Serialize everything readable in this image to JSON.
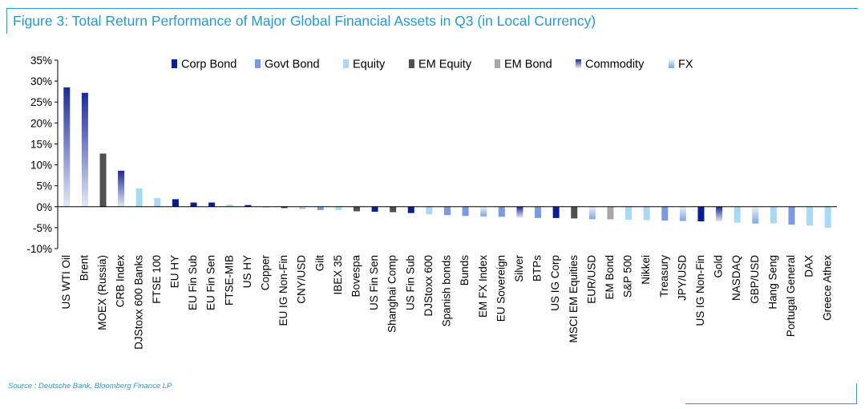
{
  "title": "Figure 3: Total Return Performance of Major Global Financial Assets in Q3 (in Local Currency)",
  "source": "Source : Deutsche Bank, Bloomberg Finance LP",
  "colors": {
    "Corp Bond": "#0a1f8f",
    "Govt Bond": "#7a9be4",
    "Equity": "#a9daf5",
    "EM Equity": "#505050",
    "EM Bond": "#a6a6a6",
    "Commodity_top": "#1a2a9c",
    "Commodity_bottom": "#e4e8f6",
    "FX_top": "#e6f1fb",
    "FX_bottom": "#7ea6e6"
  },
  "chart_data": {
    "type": "bar",
    "ylim": [
      -10,
      35
    ],
    "yticks": [
      "35%",
      "30%",
      "25%",
      "20%",
      "15%",
      "10%",
      "5%",
      "0%",
      "-5%",
      "-10%"
    ],
    "ytick_values": [
      35,
      30,
      25,
      20,
      15,
      10,
      5,
      0,
      -5,
      -10
    ],
    "legend": [
      "Corp Bond",
      "Govt Bond",
      "Equity",
      "EM Equity",
      "EM Bond",
      "Commodity",
      "FX"
    ],
    "legend_placement": "top",
    "categories": [
      "US WTI Oil",
      "Brent",
      "MOEX (Russia)",
      "CRB Index",
      "DJStoxx 600 Banks",
      "FTSE 100",
      "EU HY",
      "EU Fin Sub",
      "EU Fin Sen",
      "FTSE-MIB",
      "US HY",
      "Copper",
      "EU IG Non-Fin",
      "CNY/USD",
      "Gilt",
      "IBEX 35",
      "Bovespa",
      "US Fin Sen",
      "Shanghai Comp",
      "US Fin Sub",
      "DJStoxx 600",
      "Spanish bonds",
      "Bunds",
      "EM FX Index",
      "EU Sovereign",
      "Silver",
      "BTPs",
      "US IG Corp",
      "MSCI EM Equities",
      "EUR/USD",
      "EM Bond",
      "S&P 500",
      "Nikkei",
      "Treasury",
      "JPY/USD",
      "US IG Non-Fin",
      "Gold",
      "NASDAQ",
      "GBP/USD",
      "Hang Seng",
      "Portugal General",
      "DAX",
      "Greece Athex"
    ],
    "values": [
      28.5,
      27.2,
      12.7,
      8.6,
      4.4,
      2.1,
      1.8,
      1.0,
      1.0,
      0.5,
      0.4,
      -0.1,
      -0.3,
      -0.5,
      -0.8,
      -0.8,
      -1.1,
      -1.2,
      -1.3,
      -1.5,
      -1.8,
      -2.0,
      -2.2,
      -2.3,
      -2.4,
      -2.6,
      -2.7,
      -2.7,
      -2.8,
      -3.0,
      -3.0,
      -3.1,
      -3.2,
      -3.3,
      -3.4,
      -3.5,
      -3.5,
      -3.8,
      -4.0,
      -4.0,
      -4.3,
      -4.5,
      -5.0
    ],
    "groups": [
      "Commodity",
      "Commodity",
      "EM Equity",
      "Commodity",
      "Equity",
      "Equity",
      "Corp Bond",
      "Corp Bond",
      "Corp Bond",
      "Equity",
      "Corp Bond",
      "Commodity",
      "Corp Bond",
      "FX",
      "Govt Bond",
      "Equity",
      "EM Equity",
      "Corp Bond",
      "EM Equity",
      "Corp Bond",
      "Equity",
      "Govt Bond",
      "Govt Bond",
      "FX",
      "Govt Bond",
      "Commodity",
      "Govt Bond",
      "Corp Bond",
      "EM Equity",
      "FX",
      "EM Bond",
      "Equity",
      "Equity",
      "Govt Bond",
      "FX",
      "Corp Bond",
      "Commodity",
      "Equity",
      "FX",
      "Equity",
      "Govt Bond",
      "Equity",
      "Equity"
    ]
  }
}
